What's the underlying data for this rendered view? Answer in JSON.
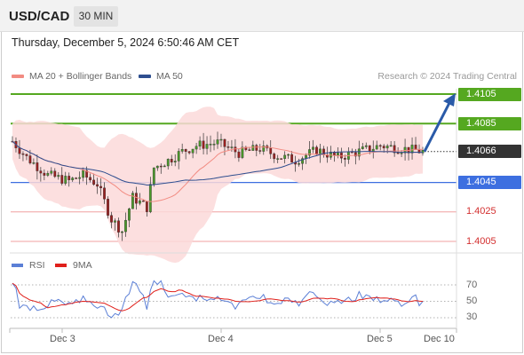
{
  "header": {
    "symbol": "USD/CAD",
    "timeframe": "30 MIN"
  },
  "timestamp": "Thursday, December 5, 2024 6:50:46 AM CET",
  "legend": {
    "ma20_label": "MA 20 + Bollinger Bands",
    "ma20_color": "#f28b82",
    "ma50_label": "MA 50",
    "ma50_color": "#2e4e8f",
    "copyright": "Research © 2024 Trading Central"
  },
  "levels": [
    {
      "label": "1.4105",
      "kind": "resistance",
      "color": "#55a820"
    },
    {
      "label": "1.4085",
      "kind": "resistance",
      "color": "#55a820"
    },
    {
      "label": "1.4066",
      "kind": "current",
      "color": "#333333"
    },
    {
      "label": "1.4045",
      "kind": "pivot",
      "color": "#3d6fe0"
    },
    {
      "label": "1.4025",
      "kind": "support",
      "color": "#d32f2f"
    },
    {
      "label": "1.4005",
      "kind": "support",
      "color": "#d32f2f"
    }
  ],
  "rsi_legend": {
    "rsi_label": "RSI",
    "rsi_color": "#5b7fd6",
    "ma_label": "9MA",
    "ma_color": "#e0201b"
  },
  "rsi_axis": [
    "70",
    "50",
    "30"
  ],
  "x_axis": [
    "Dec 3",
    "Dec 4",
    "Dec 5",
    "Dec 10"
  ],
  "arrow_color": "#2a5aa8",
  "chart_data": {
    "type": "candlestick",
    "symbol": "USD/CAD",
    "timeframe": "30 MIN",
    "price_levels": [
      1.4105,
      1.4085,
      1.4066,
      1.4045,
      1.4025,
      1.4005
    ],
    "last_price": 1.4066,
    "projected_target": 1.4105,
    "rsi_levels": [
      70,
      50,
      30
    ],
    "x_ticks": [
      "Dec 3",
      "Dec 4",
      "Dec 5",
      "Dec 10"
    ]
  }
}
